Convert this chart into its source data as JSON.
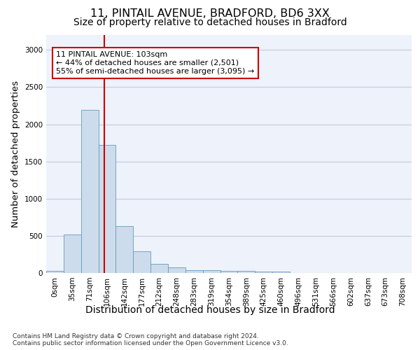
{
  "title_line1": "11, PINTAIL AVENUE, BRADFORD, BD6 3XX",
  "title_line2": "Size of property relative to detached houses in Bradford",
  "xlabel": "Distribution of detached houses by size in Bradford",
  "ylabel": "Number of detached properties",
  "footnote": "Contains HM Land Registry data © Crown copyright and database right 2024.\nContains public sector information licensed under the Open Government Licence v3.0.",
  "categories": [
    "0sqm",
    "35sqm",
    "71sqm",
    "106sqm",
    "142sqm",
    "177sqm",
    "212sqm",
    "248sqm",
    "283sqm",
    "319sqm",
    "354sqm",
    "389sqm",
    "425sqm",
    "460sqm",
    "496sqm",
    "531sqm",
    "566sqm",
    "602sqm",
    "637sqm",
    "673sqm",
    "708sqm"
  ],
  "values": [
    30,
    520,
    2190,
    1720,
    630,
    290,
    125,
    75,
    40,
    35,
    30,
    25,
    22,
    18,
    0,
    0,
    0,
    0,
    0,
    0,
    0
  ],
  "bar_color": "#ccdcec",
  "bar_edge_color": "#6699bb",
  "vline_x": 2.85,
  "vline_color": "#cc0000",
  "annotation_text": "11 PINTAIL AVENUE: 103sqm\n← 44% of detached houses are smaller (2,501)\n55% of semi-detached houses are larger (3,095) →",
  "annotation_box_color": "#cc0000",
  "ylim": [
    0,
    3200
  ],
  "yticks": [
    0,
    500,
    1000,
    1500,
    2000,
    2500,
    3000
  ],
  "background_color": "#eef2fb",
  "grid_color": "#c0ccdd",
  "title_fontsize": 11.5,
  "subtitle_fontsize": 10,
  "axis_label_fontsize": 9.5,
  "tick_fontsize": 7.5,
  "annotation_fontsize": 8
}
